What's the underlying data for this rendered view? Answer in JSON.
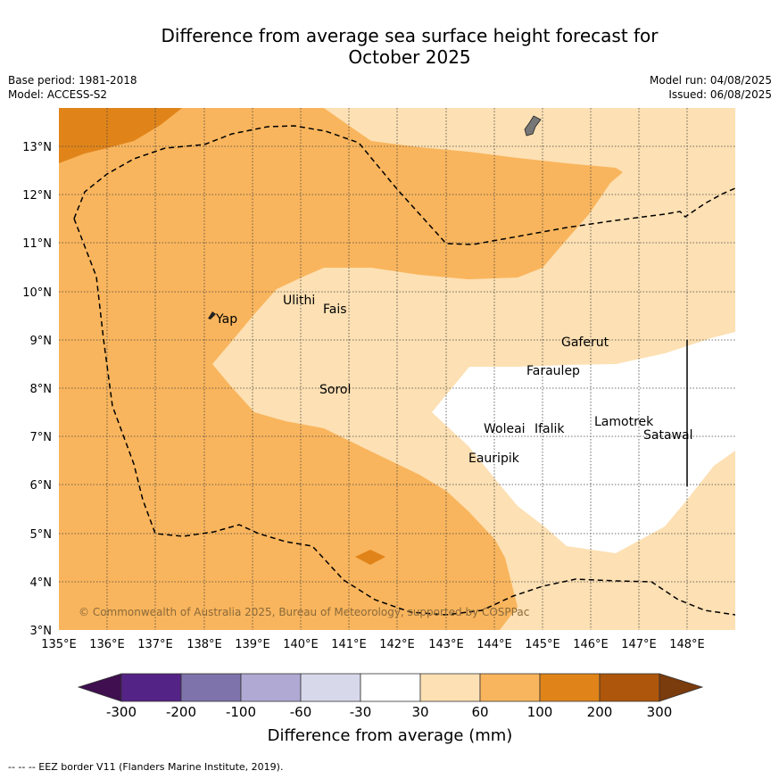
{
  "title": {
    "line1": "Difference from average sea surface height forecast for",
    "line2": "October 2025"
  },
  "meta": {
    "base_period": "Base period: 1981-2018",
    "model": "Model: ACCESS-S2",
    "model_run": "Model run: 04/08/2025",
    "issued": "Issued: 06/08/2025"
  },
  "map": {
    "x_ticks": [
      "135°E",
      "136°E",
      "137°E",
      "138°E",
      "139°E",
      "140°E",
      "141°E",
      "142°E",
      "143°E",
      "144°E",
      "145°E",
      "146°E",
      "147°E",
      "148°E"
    ],
    "y_ticks": [
      "13°N",
      "12°N",
      "11°N",
      "10°N",
      "9°N",
      "8°N",
      "7°N",
      "6°N",
      "5°N",
      "4°N",
      "3°N"
    ],
    "places": [
      "Yap",
      "Ulithi",
      "Fais",
      "Sorol",
      "Gaferut",
      "Faraulep",
      "Woleai",
      "Ifalik",
      "Lamotrek",
      "Satawal",
      "Eauripik"
    ],
    "copyright": "© Commonwealth of Australia 2025, Bureau of Meteorology, supported by COSPPac"
  },
  "colorbar": {
    "ticks": [
      "-300",
      "-200",
      "-100",
      "-60",
      "-30",
      "30",
      "60",
      "100",
      "200",
      "300"
    ],
    "label": "Difference from average (mm)",
    "colors": [
      "#3f0f4f",
      "#542386",
      "#7f73ab",
      "#b0a9d3",
      "#d8d8eb",
      "#ffffff",
      "#fde0b3",
      "#f9b55d",
      "#e0841a",
      "#ae560b",
      "#7a3b0d"
    ]
  },
  "footnote": "-- -- -- EEZ border V11 (Flanders Marine Institute, 2019)."
}
